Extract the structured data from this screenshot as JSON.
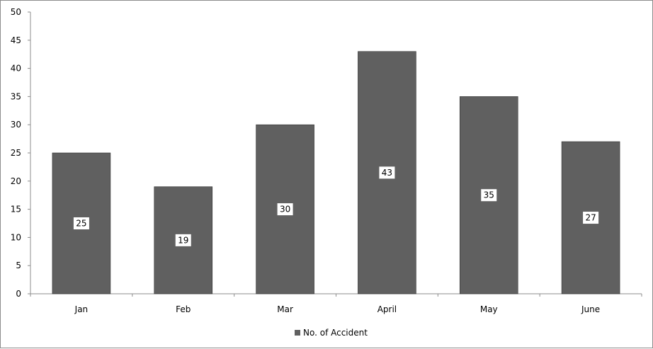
{
  "chart_data": {
    "type": "bar",
    "categories": [
      "Jan",
      "Feb",
      "Mar",
      "April",
      "May",
      "June"
    ],
    "series": [
      {
        "name": "No. of Accident",
        "values": [
          25,
          19,
          30,
          43,
          35,
          27
        ],
        "color": "#606060"
      }
    ],
    "ylim": [
      0,
      50
    ],
    "yticks": [
      0,
      5,
      10,
      15,
      20,
      25,
      30,
      35,
      40,
      45,
      50
    ],
    "grid": false,
    "data_labels": true,
    "legend_position": "bottom"
  }
}
